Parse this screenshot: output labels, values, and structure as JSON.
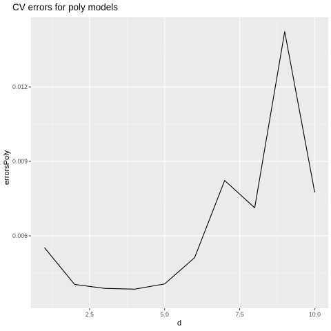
{
  "chart_data": {
    "type": "line",
    "title": "CV errors for poly models",
    "xlabel": "d",
    "ylabel": "errorsPoly",
    "x": [
      1,
      2,
      3,
      4,
      5,
      6,
      7,
      8,
      9,
      10
    ],
    "series": [
      {
        "values": [
          0.00552,
          0.00404,
          0.00388,
          0.00385,
          0.00406,
          0.00512,
          0.00823,
          0.00713,
          0.01423,
          0.00775
        ]
      }
    ],
    "xlim": [
      0.55,
      10.45
    ],
    "ylim": [
      0.00308,
      0.01481
    ],
    "xticks": [
      2.5,
      5.0,
      7.5,
      10.0
    ],
    "xtick_labels": [
      "2.5",
      "5.0",
      "7.5",
      "10.0"
    ],
    "yticks": [
      0.006,
      0.009,
      0.012
    ],
    "ytick_labels": [
      "0.006",
      "0.009",
      "0.012"
    ],
    "grid": true,
    "colors": {
      "panel_background": "#ebebeb",
      "grid_major": "#ffffff",
      "grid_minor": "#f5f5f5",
      "line": "#000000",
      "tick": "#333333"
    }
  }
}
